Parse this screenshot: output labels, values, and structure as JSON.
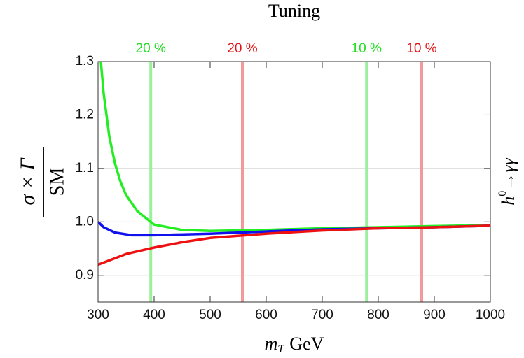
{
  "chart_data": {
    "type": "line",
    "title": "Tuning",
    "ylabel": {
      "numerator": "σ × Γ",
      "denominator": "SM"
    },
    "xlabel": {
      "var": "m",
      "sub": "T",
      "unit": "GeV"
    },
    "right_label": {
      "base": "h",
      "sup": "0",
      "rest": "→γγ"
    },
    "xlim": [
      300,
      1000
    ],
    "xticks": [
      300,
      400,
      500,
      600,
      700,
      800,
      900,
      1000
    ],
    "ylim": [
      0.85,
      1.3
    ],
    "yticks": [
      0.9,
      {
        "value": 1,
        "label": "1.0"
      },
      1.1,
      1.2,
      1.3
    ],
    "grid": true,
    "series": [
      {
        "name": "green",
        "color": "#22ee22",
        "x": [
          305,
          310,
          320,
          330,
          340,
          350,
          370,
          400,
          450,
          500,
          600,
          700,
          800,
          900,
          1000
        ],
        "values": [
          1.3,
          1.24,
          1.16,
          1.11,
          1.075,
          1.05,
          1.02,
          0.995,
          0.985,
          0.983,
          0.985,
          0.988,
          0.99,
          0.992,
          0.994
        ]
      },
      {
        "name": "blue",
        "color": "#1111ee",
        "x": [
          300,
          310,
          330,
          360,
          400,
          500,
          600,
          700,
          800,
          900,
          1000
        ],
        "values": [
          1.0,
          0.99,
          0.98,
          0.975,
          0.975,
          0.978,
          0.982,
          0.986,
          0.988,
          0.99,
          0.993
        ]
      },
      {
        "name": "red",
        "color": "#ee1111",
        "x": [
          300,
          350,
          400,
          450,
          500,
          600,
          700,
          800,
          900,
          1000
        ],
        "values": [
          0.92,
          0.94,
          0.952,
          0.962,
          0.97,
          0.978,
          0.984,
          0.988,
          0.99,
          0.993
        ]
      }
    ],
    "annotations": [
      {
        "x": 394,
        "label": "20 %",
        "color": "#22dd22",
        "line_color": "#9cef9c"
      },
      {
        "x": 557.5,
        "label": "20 %",
        "color": "#e01818",
        "line_color": "#f29a9a"
      },
      {
        "x": 779,
        "label": "10 %",
        "color": "#22dd22",
        "line_color": "#9cef9c"
      },
      {
        "x": 877.5,
        "label": "10 %",
        "color": "#e01818",
        "line_color": "#f29a9a"
      }
    ]
  }
}
